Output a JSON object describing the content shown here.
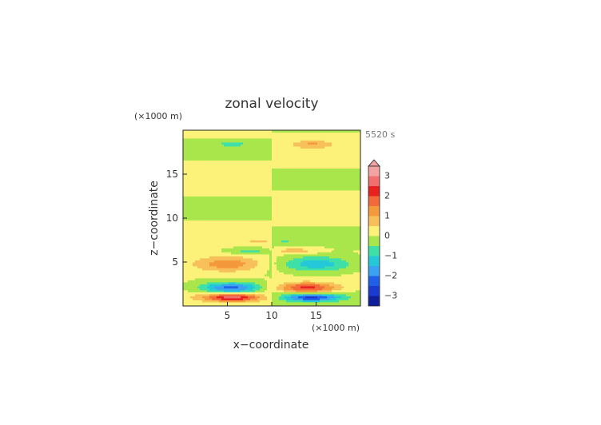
{
  "chart_data": {
    "type": "heatmap",
    "title": "zonal velocity",
    "time_label": "5520 s",
    "xlabel": "x−coordinate",
    "ylabel": "z−coordinate",
    "x_unit": "(×1000 m)",
    "y_unit": "(×1000 m)",
    "xlim": [
      0,
      20
    ],
    "ylim": [
      0,
      20
    ],
    "x_ticks": [
      "5",
      "10",
      "15"
    ],
    "y_ticks": [
      "5",
      "10",
      "15"
    ],
    "colorbar": {
      "labels": [
        "3",
        "2",
        "1",
        "0",
        "−1",
        "−2",
        "−3"
      ],
      "levels": [
        {
          "max": 3.5,
          "color": "#f4a3a3"
        },
        {
          "max": 3.0,
          "color": "#f07070"
        },
        {
          "max": 2.5,
          "color": "#e8201e"
        },
        {
          "max": 2.0,
          "color": "#f26a3a"
        },
        {
          "max": 1.5,
          "color": "#f59a3c"
        },
        {
          "max": 1.0,
          "color": "#f7c05a"
        },
        {
          "max": 0.5,
          "color": "#fcf27a"
        },
        {
          "max": 0.0,
          "color": "#a8e64c"
        },
        {
          "max": -0.5,
          "color": "#3ee0a8"
        },
        {
          "max": -1.0,
          "color": "#24c8d8"
        },
        {
          "max": -1.5,
          "color": "#3aa2f0"
        },
        {
          "max": -2.0,
          "color": "#2060e6"
        },
        {
          "max": -2.5,
          "color": "#1a3ad0"
        },
        {
          "max": -3.0,
          "color": "#101e9a"
        }
      ],
      "overflow_arrow": "top"
    },
    "field_description": "contoured zonal velocity field, x from 0 to 20, z from 0 to 20",
    "features": [
      {
        "x": 5.5,
        "z": 1.0,
        "value": 2.6,
        "rx": 3.2,
        "rz": 0.45
      },
      {
        "x": 14.5,
        "z": 1.0,
        "value": -2.6,
        "rx": 3.2,
        "rz": 0.45
      },
      {
        "x": 5.5,
        "z": 2.1,
        "value": -2.3,
        "rx": 3.4,
        "rz": 0.6
      },
      {
        "x": 14.0,
        "z": 2.1,
        "value": 2.2,
        "rx": 3.4,
        "rz": 0.6
      },
      {
        "x": 5.0,
        "z": 4.8,
        "value": 1.4,
        "rx": 4.2,
        "rz": 0.9
      },
      {
        "x": 15.0,
        "z": 4.8,
        "value": -1.5,
        "rx": 4.2,
        "rz": 0.9
      },
      {
        "x": 7.5,
        "z": 6.3,
        "value": -0.8,
        "rx": 2.6,
        "rz": 0.35
      },
      {
        "x": 12.5,
        "z": 6.3,
        "value": 0.8,
        "rx": 2.6,
        "rz": 0.35
      },
      {
        "x": 8.5,
        "z": 7.4,
        "value": 0.6,
        "rx": 1.2,
        "rz": 0.25
      },
      {
        "x": 11.5,
        "z": 7.4,
        "value": -0.5,
        "rx": 1.2,
        "rz": 0.25
      },
      {
        "x": 5.5,
        "z": 18.5,
        "value": -0.7,
        "rx": 1.6,
        "rz": 0.3
      },
      {
        "x": 14.5,
        "z": 18.5,
        "value": 0.7,
        "rx": 1.6,
        "rz": 0.3
      }
    ]
  }
}
